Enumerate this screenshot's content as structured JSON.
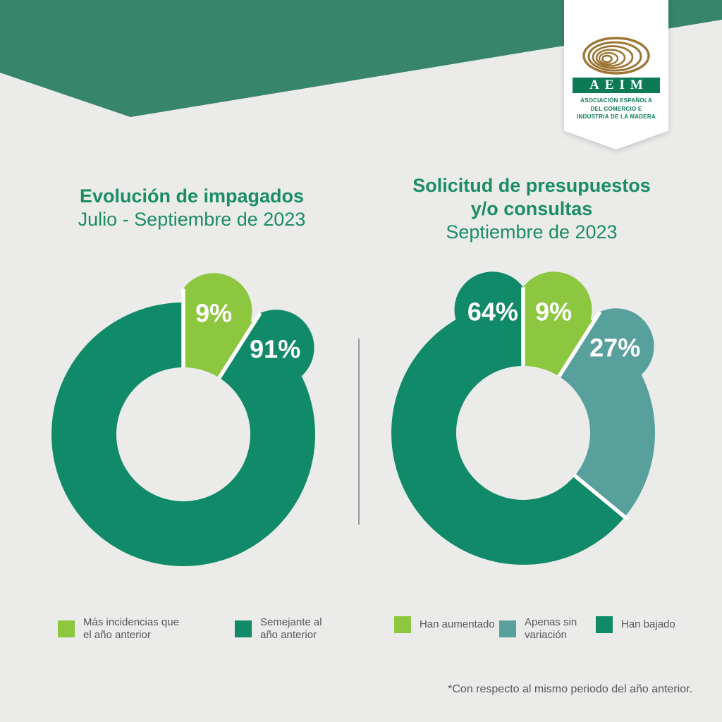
{
  "palette": {
    "background": "#EBECEA",
    "band_green": "#37856B",
    "dark_green": "#118A69",
    "light_green": "#8DC63F",
    "teal": "#57A09B",
    "title_green": "#1A8D65",
    "text_gray": "#55575A",
    "divider_gray": "#9A9A9A",
    "label_white": "#FFFFFF",
    "logo_brown": "#9C7433",
    "logo_green": "#0C7B55"
  },
  "logo": {
    "acronym": "AEIM",
    "org_lines": [
      "ASOCIACIÓN ESPAÑOLA",
      "DEL COMERCIO E",
      "INDUSTRIA DE LA MADERA"
    ]
  },
  "charts": [
    {
      "title_lines": [
        "Evolución de impagados"
      ],
      "subtitle": "Julio - Septiembre de 2023",
      "legend": [
        {
          "label": "Más incidencias que el año anterior",
          "color": "#8DC63F"
        },
        {
          "label": "Semejante al año anterior",
          "color": "#118A69"
        }
      ]
    },
    {
      "title_lines": [
        "Solicitud de presupuestos",
        "y/o consultas"
      ],
      "subtitle": "Septiembre de 2023",
      "legend": [
        {
          "label": "Han aumentado",
          "color": "#8DC63F"
        },
        {
          "label": "Apenas sin variación",
          "color": "#57A09B"
        },
        {
          "label": "Han bajado",
          "color": "#118A69"
        }
      ]
    }
  ],
  "footnote": "*Con respecto al mismo periodo del año anterior.",
  "chart_data": [
    {
      "type": "pie",
      "variant": "donut",
      "title": "Evolución de impagados",
      "subtitle": "Julio - Septiembre de 2023",
      "unit": "%",
      "slices": [
        {
          "category": "Más incidencias que el año anterior",
          "value": 9,
          "label": "9%",
          "color": "#8DC63F"
        },
        {
          "category": "Semejante al año anterior",
          "value": 91,
          "label": "91%",
          "color": "#118A69"
        }
      ]
    },
    {
      "type": "pie",
      "variant": "donut",
      "title": "Solicitud de presupuestos y/o consultas",
      "subtitle": "Septiembre de 2023",
      "unit": "%",
      "note": "*Con respecto al mismo periodo del año anterior.",
      "slices": [
        {
          "category": "Han aumentado",
          "value": 9,
          "label": "9%",
          "color": "#8DC63F"
        },
        {
          "category": "Apenas sin variación",
          "value": 27,
          "label": "27%",
          "color": "#57A09B"
        },
        {
          "category": "Han bajado",
          "value": 64,
          "label": "64%",
          "color": "#118A69"
        }
      ]
    }
  ]
}
